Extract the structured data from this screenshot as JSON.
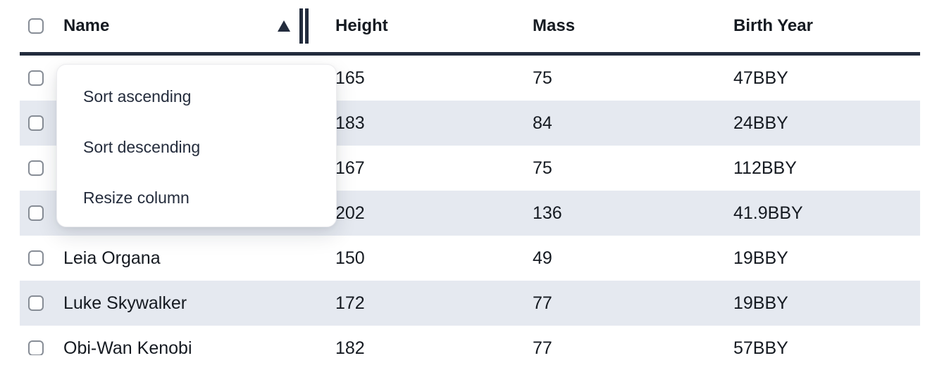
{
  "colors": {
    "accent_dark": "#232c3d",
    "row_stripe": "#e5e9f0",
    "text": "#151a21",
    "menu_text": "#242c3c",
    "checkbox_border": "#878d96",
    "background": "#ffffff"
  },
  "header": {
    "columns": [
      {
        "id": "name",
        "label": "Name"
      },
      {
        "id": "height",
        "label": "Height"
      },
      {
        "id": "mass",
        "label": "Mass"
      },
      {
        "id": "birth_year",
        "label": "Birth Year"
      }
    ],
    "sort": {
      "column": "Name",
      "direction": "ascending",
      "icon": "ascending-triangle"
    }
  },
  "rows": [
    {
      "name": "",
      "height": "165",
      "mass": "75",
      "birth_year": "47BBY",
      "selected": false
    },
    {
      "name": "",
      "height": "183",
      "mass": "84",
      "birth_year": "24BBY",
      "selected": false
    },
    {
      "name": "",
      "height": "167",
      "mass": "75",
      "birth_year": "112BBY",
      "selected": false
    },
    {
      "name": "",
      "height": "202",
      "mass": "136",
      "birth_year": "41.9BBY",
      "selected": false
    },
    {
      "name": "Leia Organa",
      "height": "150",
      "mass": "49",
      "birth_year": "19BBY",
      "selected": false
    },
    {
      "name": "Luke Skywalker",
      "height": "172",
      "mass": "77",
      "birth_year": "19BBY",
      "selected": false
    },
    {
      "name": "Obi-Wan Kenobi",
      "height": "182",
      "mass": "77",
      "birth_year": "57BBY",
      "selected": false
    }
  ],
  "context_menu": {
    "items": [
      {
        "label": "Sort ascending"
      },
      {
        "label": "Sort descending"
      },
      {
        "label": "Resize column"
      }
    ]
  }
}
